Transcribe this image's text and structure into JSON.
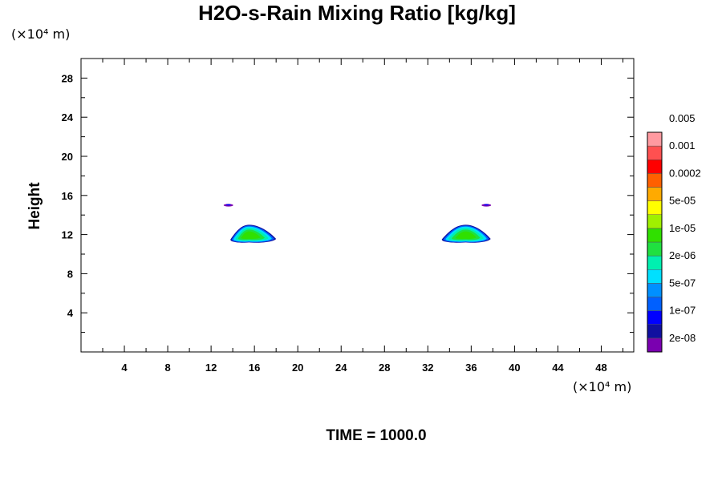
{
  "chart_data": {
    "type": "contour",
    "title": "H2O-s-Rain Mixing Ratio [kg/kg]",
    "ylabel": "Height",
    "xlabel": "",
    "x_unit_label": "(×10⁴ m)",
    "y_unit_label": "(×10⁴ m)",
    "xlim": [
      0,
      51
    ],
    "ylim": [
      0,
      30
    ],
    "x_ticks": [
      4,
      8,
      12,
      16,
      20,
      24,
      28,
      32,
      36,
      40,
      44,
      48
    ],
    "y_ticks": [
      4,
      8,
      12,
      16,
      20,
      24,
      28
    ],
    "x_tick_labels": [
      "4",
      "8",
      "12",
      "16",
      "20",
      "24",
      "28",
      "32",
      "36",
      "40",
      "44",
      "48"
    ],
    "y_tick_labels": [
      "4",
      "8",
      "12",
      "16",
      "20",
      "24",
      "28"
    ],
    "grid": false,
    "legend_position": "right",
    "colorbar": {
      "levels": [
        "2e-08",
        "1e-07",
        "5e-07",
        "2e-06",
        "1e-05",
        "5e-05",
        "0.0002",
        "0.001",
        "0.005"
      ],
      "colors": [
        "#7a00b0",
        "#1010a0",
        "#0000ff",
        "#0060ff",
        "#0090ff",
        "#00e0ff",
        "#00f0b0",
        "#20e040",
        "#30e000",
        "#a0f000",
        "#ffff00",
        "#ffaa00",
        "#ff6000",
        "#ff0000",
        "#ff5050",
        "#ff9aa0"
      ]
    },
    "features": [
      {
        "name": "left cloud",
        "x_center": 15.5,
        "x_range": [
          13.8,
          18.0
        ],
        "y_range": [
          11.2,
          13.0
        ]
      },
      {
        "name": "right cloud",
        "x_center": 35.5,
        "x_range": [
          33.3,
          37.8
        ],
        "y_range": [
          11.2,
          13.0
        ]
      },
      {
        "name": "left wisp",
        "x_center": 13.6,
        "y": 15.0
      },
      {
        "name": "right wisp",
        "x_center": 37.4,
        "y": 15.0
      }
    ],
    "time_label": "TIME = 1000.0"
  }
}
